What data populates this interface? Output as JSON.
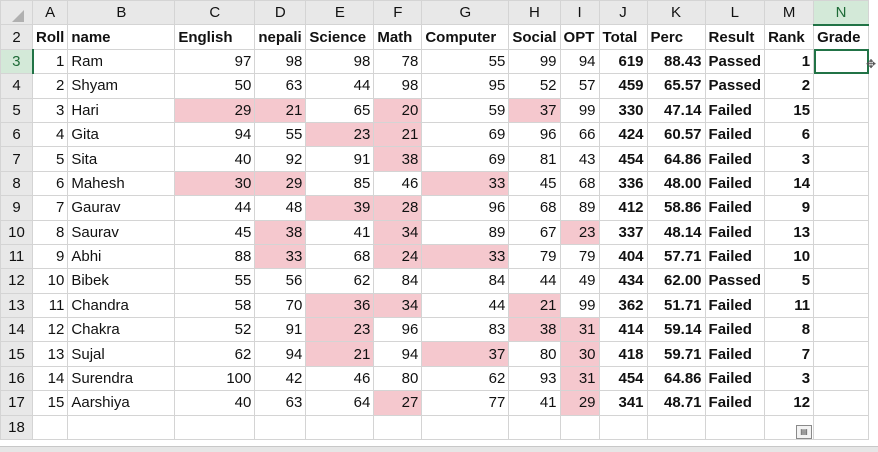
{
  "columns": [
    {
      "letter": "A",
      "width": 34
    },
    {
      "letter": "B",
      "width": 107
    },
    {
      "letter": "C",
      "width": 80
    },
    {
      "letter": "D",
      "width": 51
    },
    {
      "letter": "E",
      "width": 68
    },
    {
      "letter": "F",
      "width": 48
    },
    {
      "letter": "G",
      "width": 87
    },
    {
      "letter": "H",
      "width": 51
    },
    {
      "letter": "I",
      "width": 39
    },
    {
      "letter": "J",
      "width": 48
    },
    {
      "letter": "K",
      "width": 58
    },
    {
      "letter": "L",
      "width": 59
    },
    {
      "letter": "M",
      "width": 49
    },
    {
      "letter": "N",
      "width": 55
    }
  ],
  "selected_column": "N",
  "selected_row": 3,
  "header_row": {
    "row_number": 2,
    "cells": [
      "Roll",
      "name",
      "English",
      "nepali",
      "Science",
      "Math",
      "Computer",
      "Social",
      "OPT",
      "Total",
      "Perc",
      "Result",
      "Rank",
      "Grade"
    ]
  },
  "students": [
    {
      "row": 3,
      "roll": 1,
      "name": "Ram",
      "english": 97,
      "nepali": 98,
      "science": 98,
      "math": 78,
      "computer": 55,
      "social": 99,
      "opt": 94,
      "total": 619,
      "perc": "88.43",
      "result": "Passed",
      "rank": 1
    },
    {
      "row": 4,
      "roll": 2,
      "name": "Shyam",
      "english": 50,
      "nepali": 63,
      "science": 44,
      "math": 98,
      "computer": 95,
      "social": 52,
      "opt": 57,
      "total": 459,
      "perc": "65.57",
      "result": "Passed",
      "rank": 2
    },
    {
      "row": 5,
      "roll": 3,
      "name": "Hari",
      "english": 29,
      "nepali": 21,
      "science": 65,
      "math": 20,
      "computer": 59,
      "social": 37,
      "opt": 99,
      "total": 330,
      "perc": "47.14",
      "result": "Failed",
      "rank": 15
    },
    {
      "row": 6,
      "roll": 4,
      "name": "Gita",
      "english": 94,
      "nepali": 55,
      "science": 23,
      "math": 21,
      "computer": 69,
      "social": 96,
      "opt": 66,
      "total": 424,
      "perc": "60.57",
      "result": "Failed",
      "rank": 6
    },
    {
      "row": 7,
      "roll": 5,
      "name": "Sita",
      "english": 40,
      "nepali": 92,
      "science": 91,
      "math": 38,
      "computer": 69,
      "social": 81,
      "opt": 43,
      "total": 454,
      "perc": "64.86",
      "result": "Failed",
      "rank": 3
    },
    {
      "row": 8,
      "roll": 6,
      "name": "Mahesh",
      "english": 30,
      "nepali": 29,
      "science": 85,
      "math": 46,
      "computer": 33,
      "social": 45,
      "opt": 68,
      "total": 336,
      "perc": "48.00",
      "result": "Failed",
      "rank": 14
    },
    {
      "row": 9,
      "roll": 7,
      "name": "Gaurav",
      "english": 44,
      "nepali": 48,
      "science": 39,
      "math": 28,
      "computer": 96,
      "social": 68,
      "opt": 89,
      "total": 412,
      "perc": "58.86",
      "result": "Failed",
      "rank": 9
    },
    {
      "row": 10,
      "roll": 8,
      "name": "Saurav",
      "english": 45,
      "nepali": 38,
      "science": 41,
      "math": 34,
      "computer": 89,
      "social": 67,
      "opt": 23,
      "total": 337,
      "perc": "48.14",
      "result": "Failed",
      "rank": 13
    },
    {
      "row": 11,
      "roll": 9,
      "name": "Abhi",
      "english": 88,
      "nepali": 33,
      "science": 68,
      "math": 24,
      "computer": 33,
      "social": 79,
      "opt": 79,
      "total": 404,
      "perc": "57.71",
      "result": "Failed",
      "rank": 10
    },
    {
      "row": 12,
      "roll": 10,
      "name": "Bibek",
      "english": 55,
      "nepali": 56,
      "science": 62,
      "math": 84,
      "computer": 84,
      "social": 44,
      "opt": 49,
      "total": 434,
      "perc": "62.00",
      "result": "Passed",
      "rank": 5
    },
    {
      "row": 13,
      "roll": 11,
      "name": "Chandra",
      "english": 58,
      "nepali": 70,
      "science": 36,
      "math": 34,
      "computer": 44,
      "social": 21,
      "opt": 99,
      "total": 362,
      "perc": "51.71",
      "result": "Failed",
      "rank": 11
    },
    {
      "row": 14,
      "roll": 12,
      "name": "Chakra",
      "english": 52,
      "nepali": 91,
      "science": 23,
      "math": 96,
      "computer": 83,
      "social": 38,
      "opt": 31,
      "total": 414,
      "perc": "59.14",
      "result": "Failed",
      "rank": 8
    },
    {
      "row": 15,
      "roll": 13,
      "name": "Sujal",
      "english": 62,
      "nepali": 94,
      "science": 21,
      "math": 94,
      "computer": 37,
      "social": 80,
      "opt": 30,
      "total": 418,
      "perc": "59.71",
      "result": "Failed",
      "rank": 7
    },
    {
      "row": 16,
      "roll": 14,
      "name": "Surendra",
      "english": 100,
      "nepali": 42,
      "science": 46,
      "math": 80,
      "computer": 62,
      "social": 93,
      "opt": 31,
      "total": 454,
      "perc": "64.86",
      "result": "Failed",
      "rank": 3
    },
    {
      "row": 17,
      "roll": 15,
      "name": "Aarshiya",
      "english": 40,
      "nepali": 63,
      "science": 64,
      "math": 27,
      "computer": 77,
      "social": 41,
      "opt": 29,
      "total": 341,
      "perc": "48.71",
      "result": "Failed",
      "rank": 12
    }
  ],
  "empty_row": 18,
  "pass_mark": 40,
  "colors": {
    "low_fill": "#f5c8ce",
    "low_text": "#9c0006",
    "total_text": "#6a1fa2",
    "selection": "#217346"
  },
  "icons": {
    "cursor": "cross-cursor-icon",
    "paste_options": "paste-options-icon"
  }
}
